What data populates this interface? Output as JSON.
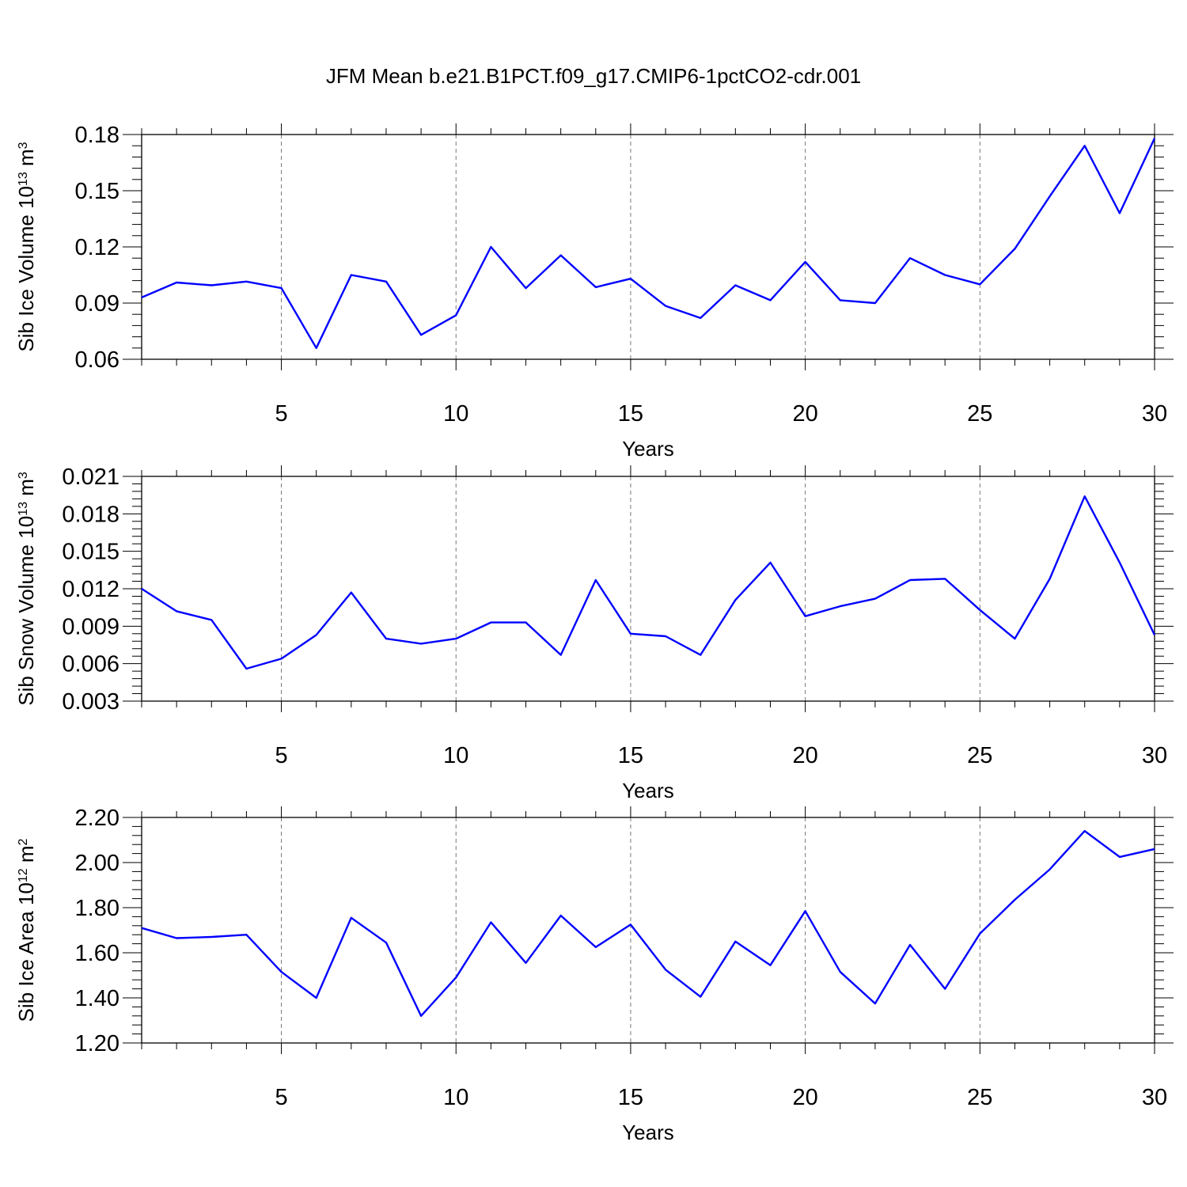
{
  "title": "JFM Mean b.e21.B1PCT.f09_g17.CMIP6-1pctCO2-cdr.001",
  "chart_data": [
    {
      "type": "line",
      "ylabel": {
        "main": "Sib Ice Volume 10",
        "exp": "13",
        "unit": " m",
        "unit_exp": "3"
      },
      "xlabel": "Years",
      "xlim": [
        1,
        30
      ],
      "ylim": [
        0.06,
        0.18
      ],
      "x_ticks": [
        5,
        10,
        15,
        20,
        25,
        30
      ],
      "y_ticks": [
        "0.06",
        "0.09",
        "0.12",
        "0.15",
        "0.18"
      ],
      "y_tick_values": [
        0.06,
        0.09,
        0.12,
        0.15,
        0.18
      ],
      "color": "#0000ff",
      "x": [
        1,
        2,
        3,
        4,
        5,
        6,
        7,
        8,
        9,
        10,
        11,
        12,
        13,
        14,
        15,
        16,
        17,
        18,
        19,
        20,
        21,
        22,
        23,
        24,
        25,
        26,
        27,
        28,
        29,
        30
      ],
      "values": [
        0.093,
        0.101,
        0.0995,
        0.1015,
        0.098,
        0.066,
        0.105,
        0.1015,
        0.073,
        0.0835,
        0.12,
        0.098,
        0.1155,
        0.0985,
        0.103,
        0.0885,
        0.082,
        0.0995,
        0.0915,
        0.112,
        0.0915,
        0.09,
        0.114,
        0.105,
        0.1,
        0.119,
        0.147,
        0.174,
        0.138,
        0.178
      ]
    },
    {
      "type": "line",
      "ylabel": {
        "main": "Sib Snow Volume 10",
        "exp": "13",
        "unit": " m",
        "unit_exp": "3"
      },
      "xlabel": "Years",
      "xlim": [
        1,
        30
      ],
      "ylim": [
        0.003,
        0.021
      ],
      "x_ticks": [
        5,
        10,
        15,
        20,
        25,
        30
      ],
      "y_ticks": [
        "0.003",
        "0.006",
        "0.009",
        "0.012",
        "0.015",
        "0.018",
        "0.021"
      ],
      "y_tick_values": [
        0.003,
        0.006,
        0.009,
        0.012,
        0.015,
        0.018,
        0.021
      ],
      "color": "#0000ff",
      "x": [
        1,
        2,
        3,
        4,
        5,
        6,
        7,
        8,
        9,
        10,
        11,
        12,
        13,
        14,
        15,
        16,
        17,
        18,
        19,
        20,
        21,
        22,
        23,
        24,
        25,
        26,
        27,
        28,
        29,
        30
      ],
      "values": [
        0.012,
        0.0102,
        0.0095,
        0.0056,
        0.0064,
        0.0083,
        0.0117,
        0.008,
        0.0076,
        0.008,
        0.0093,
        0.0093,
        0.0067,
        0.0127,
        0.0084,
        0.0082,
        0.0067,
        0.0111,
        0.0141,
        0.0098,
        0.0106,
        0.0112,
        0.0127,
        0.0128,
        0.0103,
        0.008,
        0.0128,
        0.0194,
        0.0141,
        0.0083
      ]
    },
    {
      "type": "line",
      "ylabel": {
        "main": "Sib Ice Area 10",
        "exp": "12",
        "unit": " m",
        "unit_exp": "2"
      },
      "xlabel": "Years",
      "xlim": [
        1,
        30
      ],
      "ylim": [
        1.2,
        2.2
      ],
      "x_ticks": [
        5,
        10,
        15,
        20,
        25,
        30
      ],
      "y_ticks": [
        "1.20",
        "1.40",
        "1.60",
        "1.80",
        "2.00",
        "2.20"
      ],
      "y_tick_values": [
        1.2,
        1.4,
        1.6,
        1.8,
        2.0,
        2.2
      ],
      "color": "#0000ff",
      "x": [
        1,
        2,
        3,
        4,
        5,
        6,
        7,
        8,
        9,
        10,
        11,
        12,
        13,
        14,
        15,
        16,
        17,
        18,
        19,
        20,
        21,
        22,
        23,
        24,
        25,
        26,
        27,
        28,
        29,
        30
      ],
      "values": [
        1.71,
        1.665,
        1.67,
        1.68,
        1.515,
        1.4,
        1.755,
        1.645,
        1.32,
        1.49,
        1.735,
        1.555,
        1.765,
        1.625,
        1.725,
        1.525,
        1.405,
        1.65,
        1.545,
        1.785,
        1.515,
        1.375,
        1.635,
        1.44,
        1.685,
        1.835,
        1.97,
        2.14,
        2.025,
        2.06
      ]
    }
  ]
}
